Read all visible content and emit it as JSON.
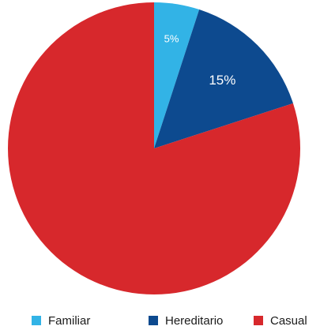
{
  "chart_data": {
    "type": "pie",
    "categories": [
      "Familiar",
      "Hereditario",
      "Casual"
    ],
    "values": [
      5,
      15,
      80
    ],
    "data_labels": [
      "5%",
      "15%",
      ""
    ],
    "colors": [
      "#32b3e6",
      "#0d4a8f",
      "#d7282c"
    ],
    "start_angle": "12 o'clock",
    "direction": "clockwise",
    "legend_position": "bottom"
  }
}
